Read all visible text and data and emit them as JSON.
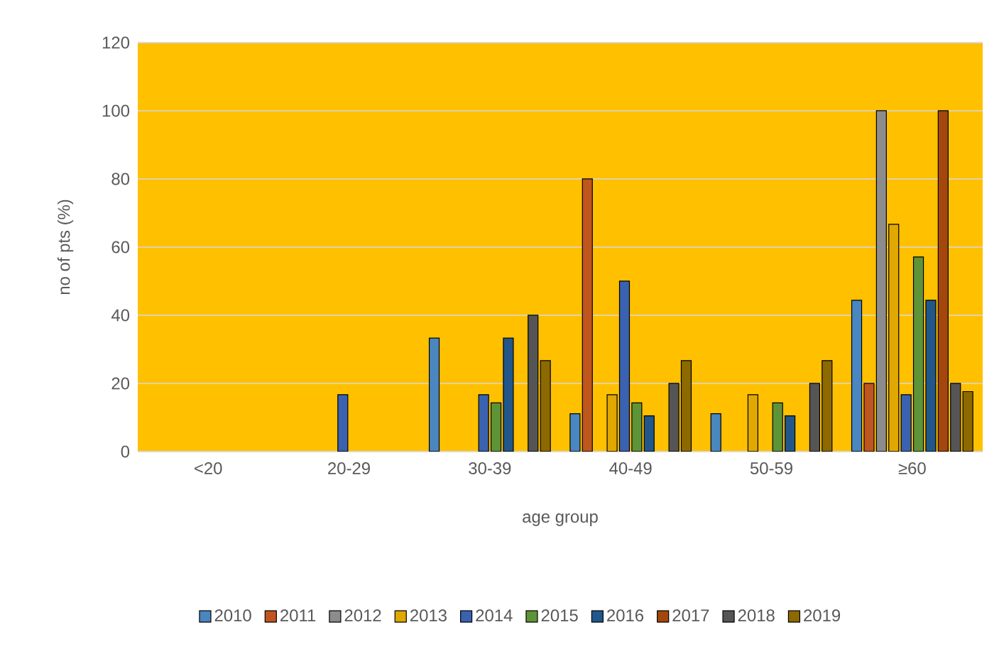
{
  "chart_data": {
    "type": "bar",
    "xlabel": "age group",
    "ylabel": "no of pts (%)",
    "categories": [
      "<20",
      "20-29",
      "30-39",
      "40-49",
      "50-59",
      "≥60"
    ],
    "series": [
      {
        "name": "2010",
        "color": "#4a86c0",
        "values": [
          null,
          null,
          33.3,
          11.1,
          11.1,
          44.4
        ]
      },
      {
        "name": "2011",
        "color": "#c0561e",
        "values": [
          null,
          null,
          null,
          80,
          null,
          20
        ]
      },
      {
        "name": "2012",
        "color": "#8c8c8c",
        "values": [
          null,
          null,
          null,
          null,
          null,
          100
        ]
      },
      {
        "name": "2013",
        "color": "#e0a800",
        "values": [
          null,
          null,
          null,
          16.7,
          16.7,
          66.7
        ]
      },
      {
        "name": "2014",
        "color": "#3a62b0",
        "values": [
          null,
          16.7,
          16.7,
          50,
          null,
          16.7
        ]
      },
      {
        "name": "2015",
        "color": "#5e9438",
        "values": [
          null,
          null,
          14.3,
          14.3,
          14.3,
          57.1
        ]
      },
      {
        "name": "2016",
        "color": "#22578a",
        "values": [
          null,
          null,
          33.3,
          10.5,
          10.5,
          44.4
        ]
      },
      {
        "name": "2017",
        "color": "#a4470c",
        "values": [
          null,
          null,
          null,
          null,
          null,
          100
        ]
      },
      {
        "name": "2018",
        "color": "#555555",
        "values": [
          null,
          null,
          40,
          20,
          20,
          20
        ]
      },
      {
        "name": "2019",
        "color": "#8c6a00",
        "values": [
          null,
          null,
          26.7,
          26.7,
          26.7,
          17.6
        ]
      }
    ],
    "ylim": [
      0,
      120
    ],
    "yticks": [
      0,
      20,
      40,
      60,
      80,
      100,
      120
    ],
    "grid": "y",
    "legend": "bottom"
  }
}
